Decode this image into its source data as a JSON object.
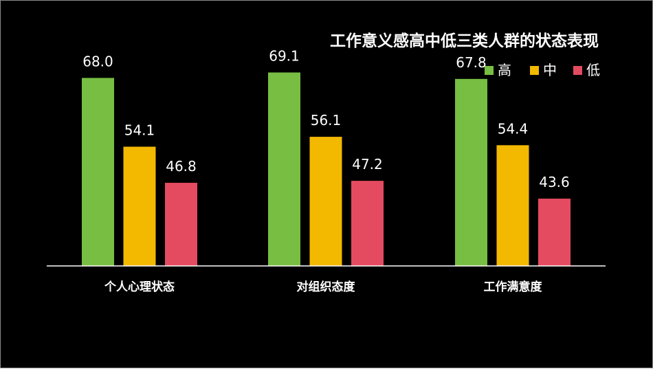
{
  "chart_data": {
    "type": "bar",
    "title": "工作意义感高中低三类人群的状态表现",
    "xlabel": "",
    "ylabel": "",
    "categories": [
      "个人心理状态",
      "对组织态度",
      "工作满意度"
    ],
    "series": [
      {
        "name": "高",
        "color": "#77be43",
        "values": [
          68.0,
          69.1,
          67.8
        ]
      },
      {
        "name": "中",
        "color": "#f3b800",
        "values": [
          54.1,
          56.1,
          54.4
        ]
      },
      {
        "name": "低",
        "color": "#e54b60",
        "values": [
          46.8,
          47.2,
          43.6
        ]
      }
    ],
    "ylim": [
      30,
      75
    ],
    "grid": false,
    "legend_position": "top-right"
  }
}
